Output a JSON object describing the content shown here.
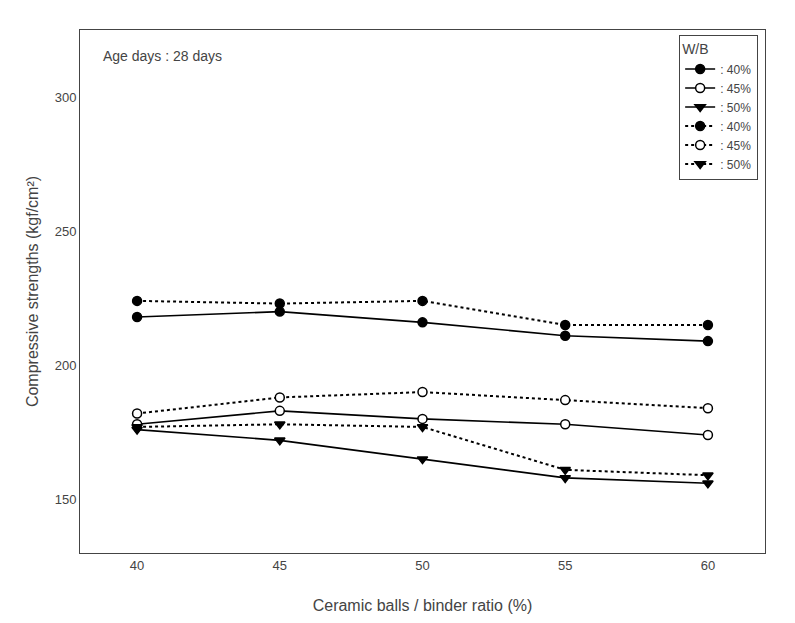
{
  "chart_data": {
    "type": "line",
    "x": [
      40,
      45,
      50,
      55,
      60
    ],
    "series": [
      {
        "name": ": 40%",
        "color": "#000000",
        "line_style": "solid",
        "marker": "circle",
        "values": [
          218,
          220,
          216,
          211,
          209
        ]
      },
      {
        "name": ": 45%",
        "color": "#000000",
        "line_style": "solid",
        "marker": "circle-open",
        "values": [
          178,
          183,
          180,
          178,
          174
        ]
      },
      {
        "name": ": 50%",
        "color": "#000000",
        "line_style": "solid",
        "marker": "triangle-down",
        "values": [
          176,
          172,
          165,
          158,
          156
        ]
      },
      {
        "name": ": 40%",
        "color": "#000000",
        "line_style": "dotted",
        "marker": "circle",
        "values": [
          224,
          223,
          224,
          215,
          215
        ]
      },
      {
        "name": ": 45%",
        "color": "#000000",
        "line_style": "dotted",
        "marker": "circle-open",
        "values": [
          182,
          188,
          190,
          187,
          184
        ]
      },
      {
        "name": ": 50%",
        "color": "#000000",
        "line_style": "dotted",
        "marker": "triangle-down",
        "values": [
          177,
          178,
          177,
          161,
          159
        ]
      }
    ],
    "x_label": "Ceramic balls / binder ratio (%)",
    "y_label": "Compressive strengths (kgf/cm²)",
    "annotation": "Age days : 28 days",
    "legend_title": "W/B",
    "xlim": [
      38,
      62
    ],
    "ylim": [
      130,
      325
    ],
    "xticks": [
      40,
      45,
      50,
      55,
      60
    ],
    "yticks": [
      150,
      200,
      250,
      300
    ],
    "grid": false,
    "legend": "upper right"
  }
}
